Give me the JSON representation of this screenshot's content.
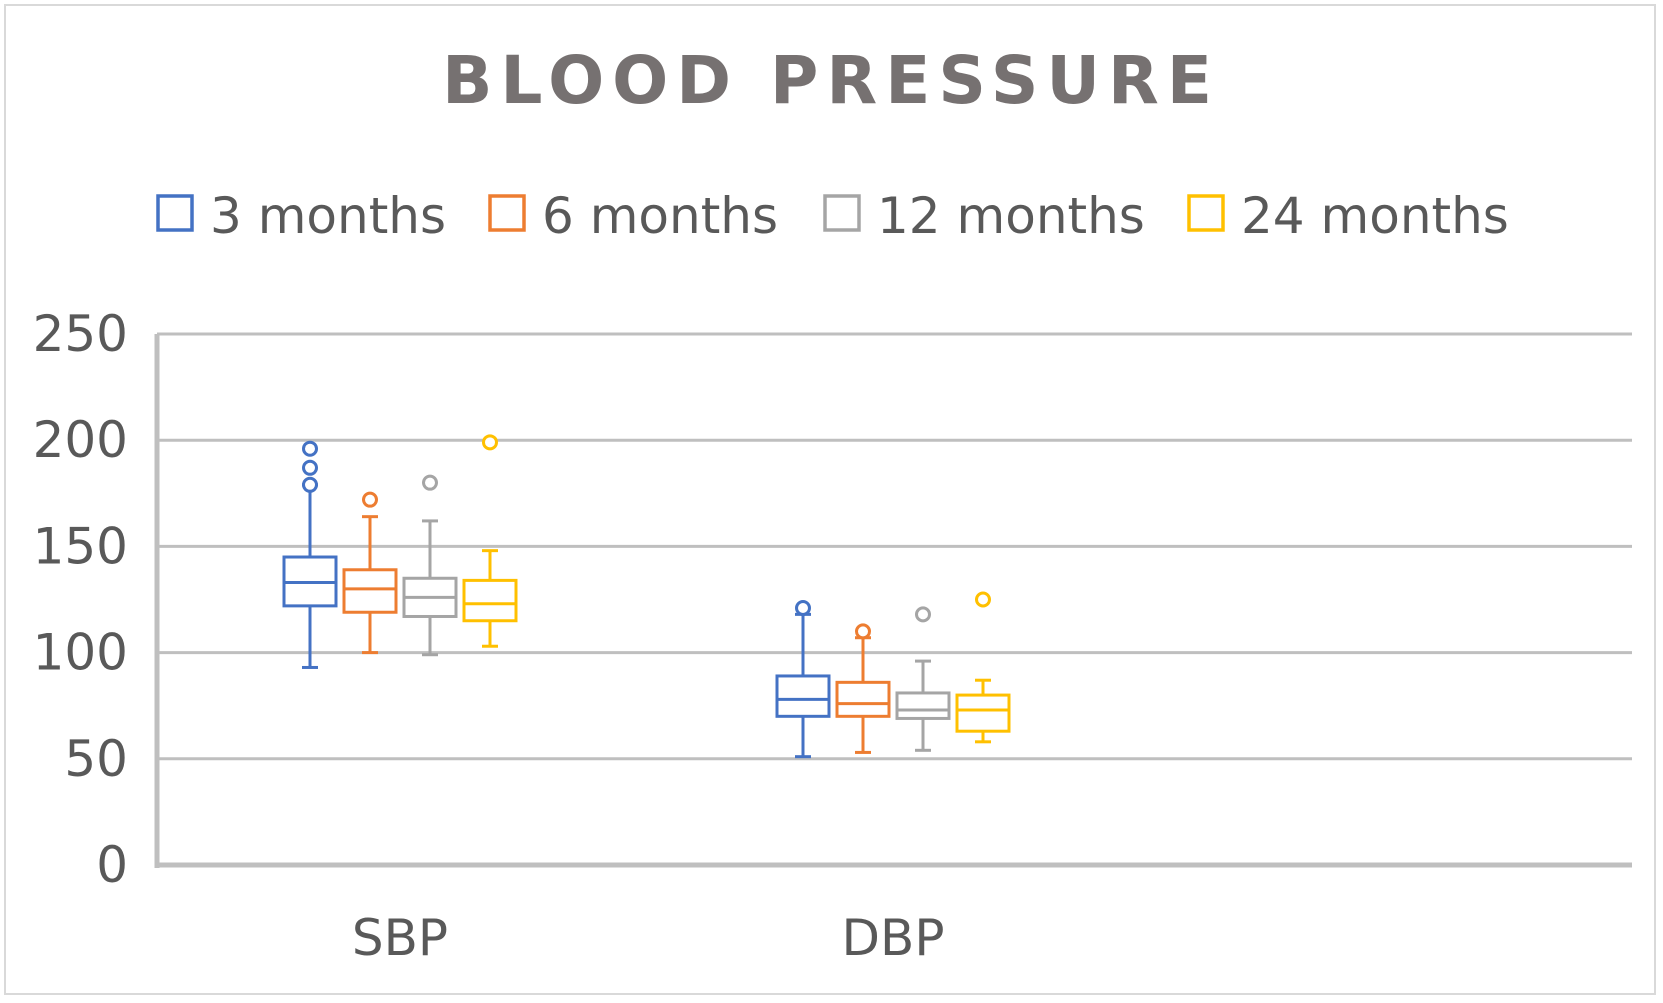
{
  "chart_data": {
    "type": "boxplot",
    "title": "BLOOD PRESSURE",
    "xlabel": "",
    "ylabel": "",
    "ylim": [
      0,
      250
    ],
    "yticks": [
      0,
      50,
      100,
      150,
      200,
      250
    ],
    "grid": true,
    "legend_position": "top",
    "categories": [
      "SBP",
      "DBP"
    ],
    "series": [
      {
        "name": "3 months",
        "color": "#4472C4",
        "boxes": [
          {
            "min": 93,
            "q1": 122,
            "median": 133,
            "q3": 145,
            "max": 179,
            "outliers": [
              179,
              187,
              196
            ]
          },
          {
            "min": 51,
            "q1": 70,
            "median": 78,
            "q3": 89,
            "max": 118,
            "outliers": [
              121
            ]
          }
        ]
      },
      {
        "name": "6 months",
        "color": "#ED7D31",
        "boxes": [
          {
            "min": 100,
            "q1": 119,
            "median": 130,
            "q3": 139,
            "max": 164,
            "outliers": [
              172
            ]
          },
          {
            "min": 53,
            "q1": 70,
            "median": 76,
            "q3": 86,
            "max": 107,
            "outliers": [
              110
            ]
          }
        ]
      },
      {
        "name": "12 months",
        "color": "#A5A5A5",
        "boxes": [
          {
            "min": 99,
            "q1": 117,
            "median": 126,
            "q3": 135,
            "max": 162,
            "outliers": [
              180
            ]
          },
          {
            "min": 54,
            "q1": 69,
            "median": 73,
            "q3": 81,
            "max": 96,
            "outliers": [
              118
            ]
          }
        ]
      },
      {
        "name": "24 months",
        "color": "#FFC000",
        "boxes": [
          {
            "min": 103,
            "q1": 115,
            "median": 123,
            "q3": 134,
            "max": 148,
            "outliers": [
              199
            ]
          },
          {
            "min": 58,
            "q1": 63,
            "median": 73,
            "q3": 80,
            "max": 87,
            "outliers": [
              125
            ]
          }
        ]
      }
    ]
  }
}
